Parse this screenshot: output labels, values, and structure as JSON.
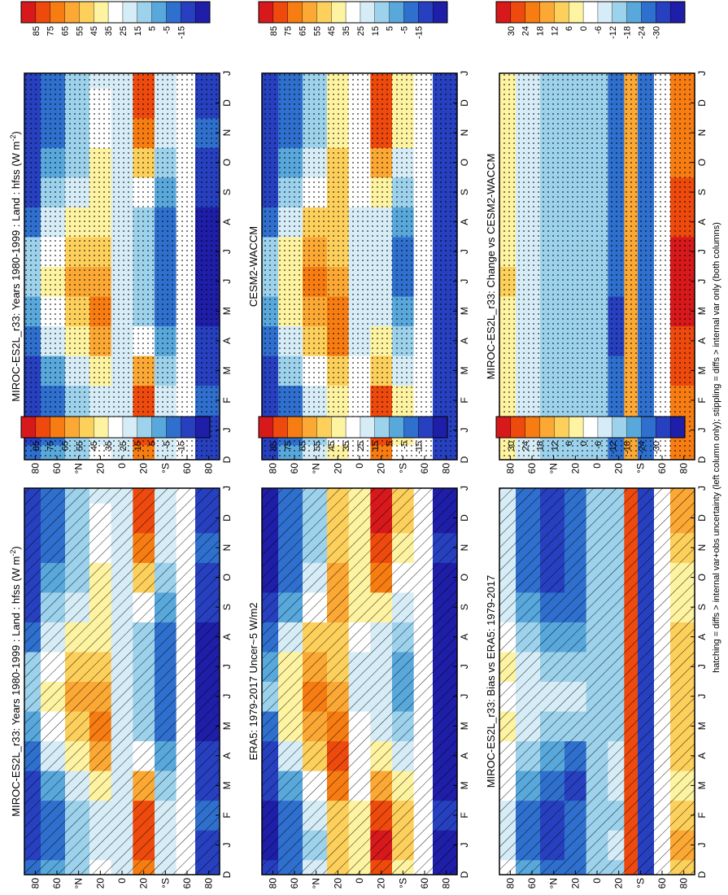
{
  "figure": {
    "footnote": "hatching = diffs > internal var+obs uncertainty (left column only); stippling = diffs > internal var only (both columns)"
  },
  "axes_common": {
    "month_labels": [
      "D",
      "J",
      "F",
      "M",
      "A",
      "M",
      "J",
      "J",
      "A",
      "S",
      "O",
      "N",
      "D",
      "J"
    ],
    "lat_labels": [
      "80",
      "60",
      "°N",
      "20",
      "0",
      "20",
      "°S",
      "60",
      "80"
    ],
    "lat_values": [
      80,
      60,
      40,
      20,
      0,
      -20,
      -40,
      -60,
      -80
    ]
  },
  "colorbars": {
    "absolute": {
      "labels": [
        "85",
        "75",
        "65",
        "55",
        "45",
        "35",
        "25",
        "15",
        "5",
        "-5",
        "-15"
      ],
      "colors": [
        "#d7191c",
        "#ee4a0e",
        "#f77d12",
        "#fba834",
        "#fdd05c",
        "#fef3a0",
        "#ffffff",
        "#d6ecf6",
        "#9dd2ec",
        "#59a8dc",
        "#2f6fce",
        "#2740c0",
        "#1e1ea8"
      ]
    },
    "difference": {
      "labels": [
        "30",
        "24",
        "18",
        "12",
        "6",
        "0",
        "-6",
        "-12",
        "-18",
        "-24",
        "-30"
      ],
      "colors": [
        "#d7191c",
        "#ee4a0e",
        "#f77d12",
        "#fba834",
        "#fdd05c",
        "#fef3a0",
        "#ffffff",
        "#d6ecf6",
        "#9dd2ec",
        "#59a8dc",
        "#2f6fce",
        "#2740c0",
        "#1e1ea8"
      ]
    }
  },
  "panels": [
    {
      "id": "p1",
      "title": "MIROC-ES2L_r33: Years 1980-1999 : Land : hfss (W m",
      "title_sup": "-2",
      "title_end": ")",
      "scale": "absolute",
      "overlay": "hatch"
    },
    {
      "id": "p2",
      "title": "MIROC-ES2L_r33: Years 1980-1999 : Land : hfss (W m",
      "title_sup": "-2",
      "title_end": ")",
      "scale": "absolute",
      "overlay": "stipple"
    },
    {
      "id": "p3",
      "title": "ERA5: 1979-2017 Uncer~5 W/m2",
      "title_sup": "",
      "title_end": "",
      "scale": "absolute",
      "overlay": "hatch"
    },
    {
      "id": "p4",
      "title": "CESM2-WACCM",
      "title_sup": "",
      "title_end": "",
      "scale": "absolute",
      "overlay": "stipple"
    },
    {
      "id": "p5",
      "title": "MIROC-ES2L_r33: Bias vs ERA5: 1979-2017",
      "title_sup": "",
      "title_end": "",
      "scale": "difference",
      "overlay": "hatch"
    },
    {
      "id": "p6",
      "title": "MIROC-ES2L_r33: Change vs CESM2-WACCM",
      "title_sup": "",
      "title_end": "",
      "scale": "difference",
      "overlay": "stipple"
    }
  ],
  "chart_data": [
    {
      "type": "heatmap",
      "title": "MIROC-ES2L_r33: Years 1980-1999 : Land : hfss (W m-2)",
      "x": "month (D to J)",
      "y": "latitude",
      "ylim": [
        -90,
        90
      ],
      "bands": [
        {
          "lat": 85,
          "values": [
            0,
            -10,
            -10,
            -5,
            0,
            10,
            20,
            15,
            5,
            -5,
            -10,
            -10,
            -10,
            -10
          ]
        },
        {
          "lat": 65,
          "values": [
            10,
            5,
            5,
            10,
            25,
            35,
            40,
            35,
            25,
            15,
            10,
            5,
            5,
            5
          ]
        },
        {
          "lat": 40,
          "values": [
            20,
            15,
            15,
            25,
            40,
            55,
            60,
            55,
            45,
            30,
            20,
            15,
            15,
            15
          ]
        },
        {
          "lat": 20,
          "values": [
            35,
            30,
            30,
            45,
            60,
            65,
            60,
            50,
            45,
            45,
            40,
            35,
            35,
            30
          ]
        },
        {
          "lat": 0,
          "values": [
            30,
            30,
            30,
            30,
            25,
            25,
            25,
            25,
            25,
            30,
            30,
            30,
            30,
            30
          ]
        },
        {
          "lat": -20,
          "values": [
            70,
            80,
            75,
            60,
            35,
            20,
            15,
            15,
            20,
            35,
            55,
            70,
            75,
            80
          ]
        },
        {
          "lat": -40,
          "values": [
            25,
            30,
            25,
            20,
            10,
            5,
            0,
            0,
            5,
            10,
            15,
            25,
            30,
            30
          ]
        },
        {
          "lat": -60,
          "values": [
            null,
            null,
            null,
            null,
            null,
            null,
            null,
            null,
            null,
            null,
            null,
            null,
            null,
            null
          ]
        },
        {
          "lat": -75,
          "values": [
            -5,
            -5,
            0,
            -5,
            -10,
            -15,
            -15,
            -15,
            -15,
            -10,
            -5,
            0,
            -5,
            -5
          ]
        }
      ]
    },
    {
      "type": "heatmap",
      "title": "ERA5: 1979-2017 Uncer~5 W/m2",
      "x": "month (D to J)",
      "y": "latitude",
      "ylim": [
        -90,
        90
      ],
      "bands": [
        {
          "lat": 85,
          "values": [
            -10,
            -15,
            -15,
            -10,
            -5,
            5,
            15,
            10,
            0,
            -10,
            -15,
            -15,
            -15,
            -15
          ]
        },
        {
          "lat": 65,
          "values": [
            5,
            0,
            0,
            10,
            25,
            40,
            45,
            40,
            25,
            10,
            5,
            0,
            0,
            0
          ]
        },
        {
          "lat": 40,
          "values": [
            25,
            20,
            25,
            35,
            50,
            60,
            65,
            60,
            50,
            35,
            25,
            20,
            20,
            20
          ]
        },
        {
          "lat": 20,
          "values": [
            55,
            50,
            55,
            70,
            80,
            70,
            60,
            55,
            55,
            60,
            60,
            55,
            55,
            50
          ]
        },
        {
          "lat": 0,
          "values": [
            40,
            40,
            40,
            35,
            35,
            35,
            30,
            30,
            35,
            40,
            40,
            40,
            40,
            40
          ]
        },
        {
          "lat": -20,
          "values": [
            75,
            85,
            80,
            60,
            40,
            30,
            25,
            25,
            30,
            45,
            65,
            80,
            85,
            85
          ]
        },
        {
          "lat": -40,
          "values": [
            45,
            55,
            50,
            40,
            25,
            15,
            10,
            10,
            15,
            25,
            35,
            45,
            50,
            50
          ]
        },
        {
          "lat": -60,
          "values": [
            null,
            null,
            null,
            null,
            null,
            null,
            null,
            null,
            null,
            null,
            null,
            null,
            null,
            null
          ]
        },
        {
          "lat": -75,
          "values": [
            -15,
            -15,
            -10,
            -15,
            -15,
            -15,
            -15,
            -15,
            -15,
            -15,
            -15,
            -10,
            -15,
            -15
          ]
        }
      ]
    },
    {
      "type": "heatmap",
      "title": "MIROC-ES2L_r33: Bias vs ERA5: 1979-2017",
      "x": "month (D to J)",
      "y": "latitude",
      "ylim": [
        -90,
        90
      ],
      "bands": [
        {
          "lat": 85,
          "values": [
            0,
            -5,
            -5,
            0,
            0,
            5,
            0,
            5,
            0,
            -5,
            -5,
            -5,
            -5,
            -5
          ]
        },
        {
          "lat": 65,
          "values": [
            -15,
            -20,
            -20,
            -15,
            -10,
            -5,
            -5,
            -5,
            -10,
            -15,
            -20,
            -20,
            -20,
            -20
          ]
        },
        {
          "lat": 40,
          "values": [
            -20,
            -25,
            -25,
            -20,
            -15,
            -10,
            -5,
            -10,
            -15,
            -20,
            -25,
            -25,
            -25,
            -25
          ]
        },
        {
          "lat": 20,
          "values": [
            -20,
            -20,
            -20,
            -25,
            -20,
            -10,
            -5,
            -10,
            -15,
            -20,
            -20,
            -20,
            -20,
            -20
          ]
        },
        {
          "lat": 0,
          "values": [
            -10,
            -10,
            -10,
            -10,
            -10,
            -10,
            -10,
            -10,
            -10,
            -10,
            -10,
            -10,
            -10,
            -10
          ]
        },
        {
          "lat": -20,
          "values": [
            -10,
            -5,
            -10,
            -5,
            -5,
            -10,
            -10,
            -10,
            -10,
            -10,
            -10,
            -10,
            -10,
            -10
          ]
        },
        {
          "lat": -30,
          "values": [
            25,
            25,
            25,
            25,
            25,
            25,
            25,
            25,
            25,
            25,
            25,
            25,
            25,
            25
          ]
        },
        {
          "lat": -45,
          "values": [
            -25,
            -25,
            -25,
            -25,
            -25,
            -25,
            -25,
            -25,
            -25,
            -25,
            -25,
            -25,
            -25,
            -25
          ]
        },
        {
          "lat": -60,
          "values": [
            null,
            null,
            null,
            null,
            null,
            null,
            null,
            null,
            null,
            null,
            null,
            null,
            null,
            null
          ]
        },
        {
          "lat": -75,
          "values": [
            10,
            15,
            10,
            5,
            10,
            10,
            10,
            10,
            10,
            5,
            5,
            10,
            15,
            15
          ]
        }
      ]
    },
    {
      "type": "heatmap",
      "title": "CESM2-WACCM",
      "x": "month (D to J)",
      "y": "latitude",
      "ylim": [
        -90,
        90
      ],
      "bands": [
        {
          "lat": 85,
          "values": [
            -5,
            -10,
            -10,
            -5,
            0,
            10,
            15,
            15,
            5,
            -5,
            -10,
            -10,
            -10,
            -10
          ]
        },
        {
          "lat": 65,
          "values": [
            10,
            5,
            5,
            15,
            30,
            40,
            45,
            40,
            30,
            15,
            10,
            5,
            5,
            5
          ]
        },
        {
          "lat": 40,
          "values": [
            25,
            20,
            25,
            35,
            50,
            60,
            65,
            60,
            50,
            35,
            25,
            20,
            20,
            20
          ]
        },
        {
          "lat": 20,
          "values": [
            40,
            35,
            40,
            55,
            65,
            65,
            60,
            55,
            55,
            55,
            50,
            45,
            45,
            40
          ]
        },
        {
          "lat": 0,
          "values": [
            35,
            35,
            35,
            35,
            30,
            30,
            30,
            30,
            30,
            35,
            35,
            35,
            35,
            35
          ]
        },
        {
          "lat": -20,
          "values": [
            65,
            80,
            75,
            55,
            40,
            30,
            25,
            25,
            30,
            45,
            60,
            75,
            80,
            80
          ]
        },
        {
          "lat": -40,
          "values": [
            35,
            45,
            40,
            30,
            20,
            10,
            5,
            5,
            10,
            20,
            30,
            40,
            45,
            45
          ]
        },
        {
          "lat": -60,
          "values": [
            null,
            null,
            null,
            null,
            null,
            null,
            null,
            null,
            null,
            null,
            null,
            null,
            null,
            null
          ]
        },
        {
          "lat": -75,
          "values": [
            -10,
            -10,
            -10,
            -10,
            -10,
            -10,
            -10,
            -10,
            -10,
            -10,
            -10,
            -10,
            -10,
            -10
          ]
        }
      ]
    },
    {
      "type": "heatmap",
      "title": "MIROC-ES2L_r33: Change vs CESM2-WACCM",
      "x": "month (D to J)",
      "y": "latitude",
      "ylim": [
        -90,
        90
      ],
      "bands": [
        {
          "lat": 85,
          "values": [
            5,
            5,
            5,
            5,
            5,
            5,
            10,
            5,
            5,
            5,
            5,
            5,
            5,
            5
          ]
        },
        {
          "lat": 65,
          "values": [
            -5,
            -5,
            -5,
            -5,
            -5,
            -5,
            -5,
            -5,
            -5,
            -5,
            -5,
            -5,
            -5,
            -5
          ]
        },
        {
          "lat": 40,
          "values": [
            -10,
            -10,
            -10,
            -10,
            -10,
            -10,
            -10,
            -10,
            -10,
            -10,
            -10,
            -10,
            -10,
            -10
          ]
        },
        {
          "lat": 20,
          "values": [
            -10,
            -10,
            -10,
            -10,
            -10,
            -10,
            -10,
            -10,
            -10,
            -10,
            -10,
            -10,
            -10,
            -10
          ]
        },
        {
          "lat": 0,
          "values": [
            -10,
            -10,
            -10,
            -10,
            -10,
            -10,
            -10,
            -10,
            -10,
            -10,
            -10,
            -10,
            -10,
            -10
          ]
        },
        {
          "lat": -20,
          "values": [
            -20,
            -20,
            -20,
            -20,
            -25,
            -25,
            -20,
            -20,
            -20,
            -20,
            -20,
            -20,
            -20,
            -20
          ]
        },
        {
          "lat": -30,
          "values": [
            15,
            15,
            15,
            15,
            15,
            15,
            15,
            15,
            15,
            15,
            15,
            15,
            15,
            15
          ]
        },
        {
          "lat": -45,
          "values": [
            -20,
            -20,
            -20,
            -20,
            -20,
            -20,
            -20,
            -20,
            -20,
            -20,
            -20,
            -20,
            -20,
            -20
          ]
        },
        {
          "lat": -60,
          "values": [
            null,
            null,
            null,
            null,
            null,
            null,
            null,
            null,
            null,
            null,
            null,
            null,
            null,
            null
          ]
        },
        {
          "lat": -75,
          "values": [
            20,
            20,
            20,
            25,
            25,
            30,
            30,
            30,
            25,
            25,
            20,
            20,
            20,
            20
          ]
        }
      ]
    }
  ]
}
